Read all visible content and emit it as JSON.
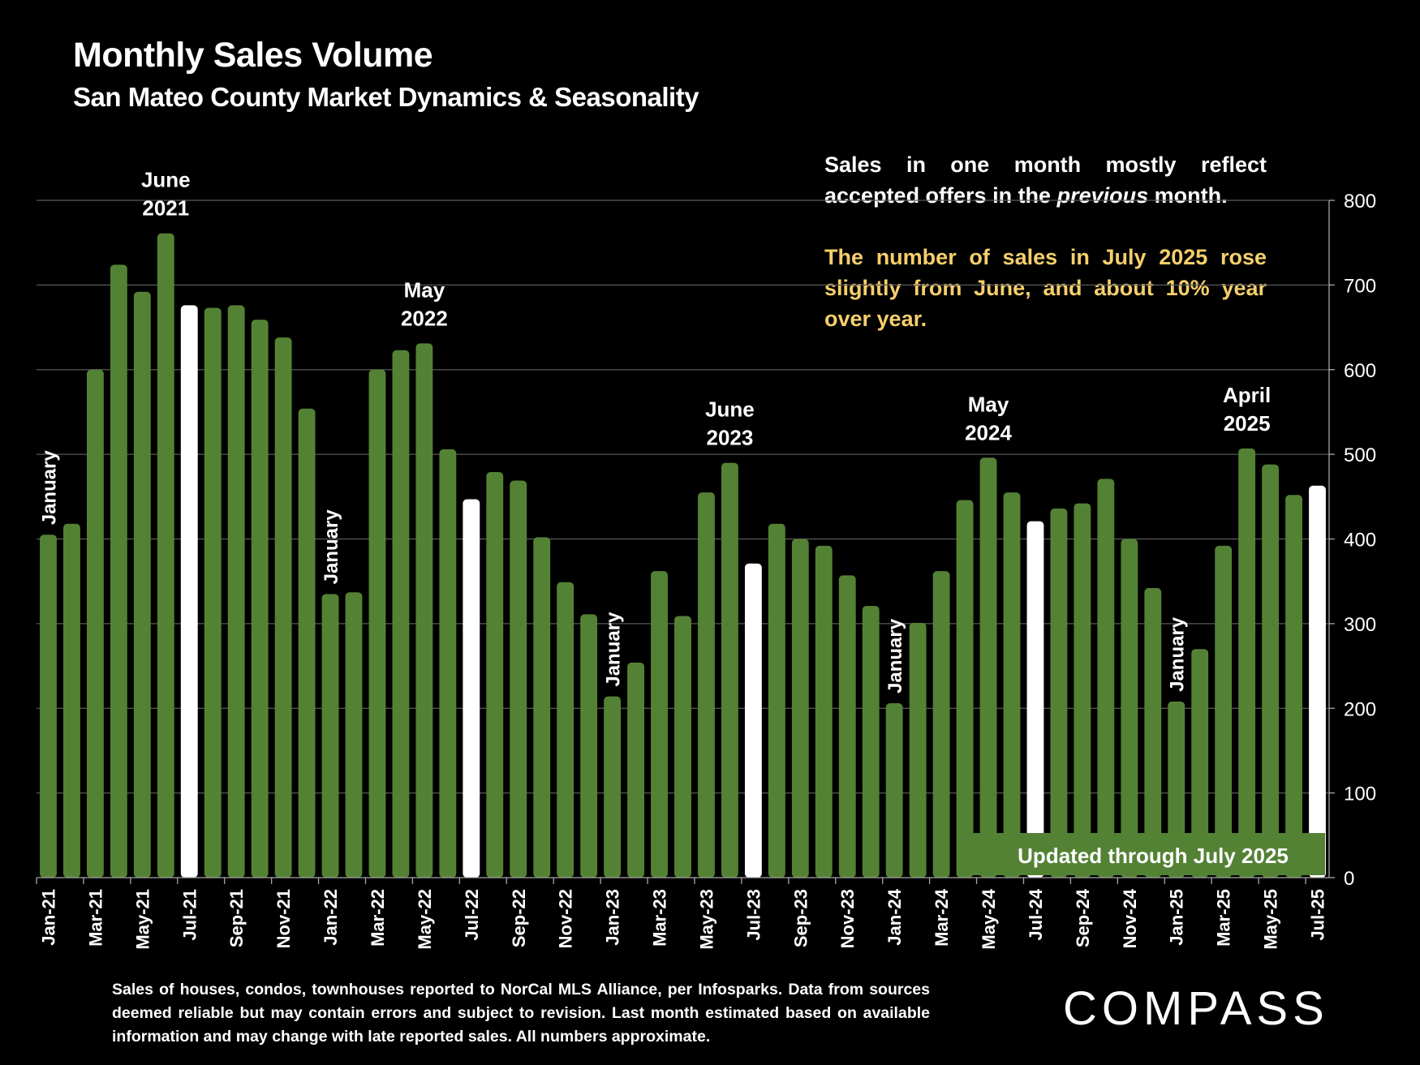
{
  "header": {
    "title": "Monthly Sales Volume",
    "subtitle": "San Mateo County Market Dynamics & Seasonality"
  },
  "notes": {
    "note1_part1": "Sales in one month mostly reflect accepted offers in the ",
    "note1_italic": "previous",
    "note1_part2": " month.",
    "note2": "The number of sales in July 2025 rose slightly from June, and about 10% year over year."
  },
  "footer": {
    "disclaimer": "Sales of houses, condos, townhouses reported to NorCal MLS Alliance, per Infosparks. Data from sources deemed reliable but may contain errors and subject to revision. Last month estimated based on available information and may change with late reported sales. All numbers approximate.",
    "logo": "COMPASS"
  },
  "colors": {
    "bar": "#548235",
    "highlight": "#ffffff",
    "note_yellow": "#f5cf6b",
    "background": "#000000",
    "grid": "#595959"
  },
  "chart_data": {
    "type": "bar",
    "title": "Monthly Sales Volume",
    "subtitle": "San Mateo County Market Dynamics & Seasonality",
    "xlabel": "",
    "ylabel": "",
    "ylim": [
      0,
      800
    ],
    "yticks": [
      0,
      100,
      200,
      300,
      400,
      500,
      600,
      700,
      800
    ],
    "y_axis_side": "right",
    "grid": true,
    "categories": [
      "Jan-21",
      "Feb-21",
      "Mar-21",
      "Apr-21",
      "May-21",
      "Jun-21",
      "Jul-21",
      "Aug-21",
      "Sep-21",
      "Oct-21",
      "Nov-21",
      "Dec-21",
      "Jan-22",
      "Feb-22",
      "Mar-22",
      "Apr-22",
      "May-22",
      "Jun-22",
      "Jul-22",
      "Aug-22",
      "Sep-22",
      "Oct-22",
      "Nov-22",
      "Dec-22",
      "Jan-23",
      "Feb-23",
      "Mar-23",
      "Apr-23",
      "May-23",
      "Jun-23",
      "Jul-23",
      "Aug-23",
      "Sep-23",
      "Oct-23",
      "Nov-23",
      "Dec-23",
      "Jan-24",
      "Feb-24",
      "Mar-24",
      "Apr-24",
      "May-24",
      "Jun-24",
      "Jul-24",
      "Aug-24",
      "Sep-24",
      "Oct-24",
      "Nov-24",
      "Dec-24",
      "Jan-25",
      "Feb-25",
      "Mar-25",
      "Apr-25",
      "May-25",
      "Jun-25",
      "Jul-25"
    ],
    "x_tick_labels": [
      "Jan-21",
      "Mar-21",
      "May-21",
      "Jul-21",
      "Sep-21",
      "Nov-21",
      "Jan-22",
      "Mar-22",
      "May-22",
      "Jul-22",
      "Sep-22",
      "Nov-22",
      "Jan-23",
      "Mar-23",
      "May-23",
      "Jul-23",
      "Sep-23",
      "Nov-23",
      "Jan-24",
      "Mar-24",
      "May-24",
      "Jul-24",
      "Sep-24",
      "Nov-24",
      "Jan-25",
      "Mar-25",
      "May-25",
      "Jul-25"
    ],
    "values": [
      405,
      418,
      600,
      724,
      692,
      761,
      676,
      673,
      676,
      659,
      638,
      554,
      335,
      337,
      600,
      623,
      631,
      506,
      447,
      479,
      469,
      402,
      349,
      311,
      214,
      254,
      362,
      309,
      455,
      490,
      371,
      418,
      400,
      392,
      357,
      321,
      206,
      301,
      362,
      446,
      496,
      455,
      421,
      436,
      442,
      471,
      400,
      342,
      208,
      270,
      392,
      507,
      488,
      452,
      463
    ],
    "highlighted": [
      "Jul-21",
      "Jul-22",
      "Jul-23",
      "Jul-24",
      "Jul-25"
    ],
    "annotations": [
      {
        "target": "Jan-21",
        "text": "January",
        "rotated": true
      },
      {
        "target": "Jun-21",
        "text": "June 2021",
        "lines": [
          "June",
          "2021"
        ]
      },
      {
        "target": "Jan-22",
        "text": "January",
        "rotated": true
      },
      {
        "target": "May-22",
        "text": "May 2022",
        "lines": [
          "May",
          "2022"
        ]
      },
      {
        "target": "Jan-23",
        "text": "January",
        "rotated": true
      },
      {
        "target": "Jun-23",
        "text": "June 2023",
        "lines": [
          "June",
          "2023"
        ]
      },
      {
        "target": "Jan-24",
        "text": "January",
        "rotated": true
      },
      {
        "target": "May-24",
        "text": "May 2024",
        "lines": [
          "May",
          "2024"
        ]
      },
      {
        "target": "Jan-25",
        "text": "January",
        "rotated": true
      },
      {
        "target": "Apr-25",
        "text": "April 2025",
        "lines": [
          "April",
          "2025"
        ]
      }
    ],
    "banner": "Updated through July 2025"
  }
}
